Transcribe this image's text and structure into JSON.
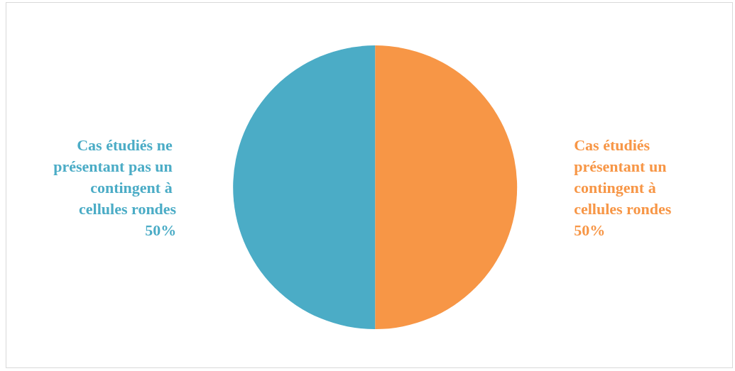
{
  "chart_data": {
    "type": "pie",
    "categories": [
      "Cas étudiés présentant un contingent à cellules rondes",
      "Cas étudiés ne présentant pas un contingent à cellules rondes"
    ],
    "values": [
      50,
      50
    ],
    "colors": [
      "#f79646",
      "#4bacc6"
    ],
    "value_labels": [
      "50%",
      "50%"
    ],
    "legend": false
  }
}
